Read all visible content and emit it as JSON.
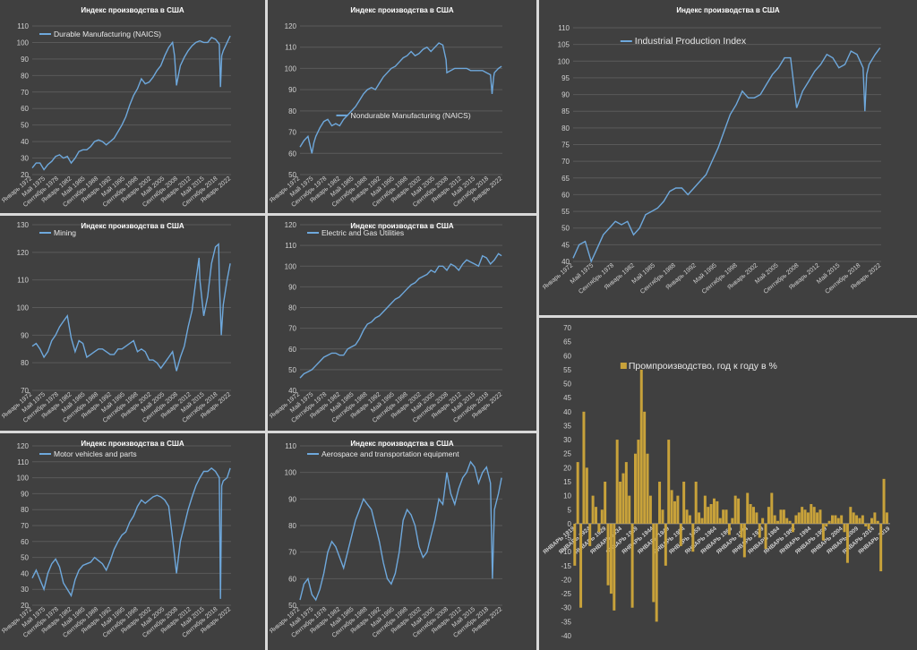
{
  "chart_data": [
    {
      "type": "line",
      "title": "Индекс производства в США",
      "legend": "Durable Manufacturing (NAICS)",
      "legend_position": "top-left",
      "color": "#6ea8dc",
      "ylim": [
        20,
        110
      ],
      "yticks": [
        20,
        30,
        40,
        50,
        60,
        70,
        80,
        90,
        100,
        110
      ],
      "xlim": [
        1972,
        2023
      ],
      "xticks": [
        "Январь 1972",
        "Май 1975",
        "Сентябрь 1978",
        "Январь 1982",
        "Май 1985",
        "Сентябрь 1988",
        "Январь 1992",
        "Май 1995",
        "Сентябрь 1998",
        "Январь 2002",
        "Май 2005",
        "Сентябрь 2008",
        "Январь 2012",
        "Май 2015",
        "Сентябрь 2018",
        "Январь 2022"
      ],
      "x": [
        1972,
        1973,
        1974,
        1975,
        1976,
        1977,
        1978,
        1979,
        1980,
        1981,
        1982,
        1983,
        1984,
        1985,
        1986,
        1987,
        1988,
        1989,
        1990,
        1991,
        1992,
        1993,
        1994,
        1995,
        1996,
        1997,
        1998,
        1999,
        2000,
        2001,
        2002,
        2003,
        2004,
        2005,
        2006,
        2007,
        2008,
        2008.5,
        2009,
        2009.5,
        2010,
        2011,
        2012,
        2013,
        2014,
        2015,
        2016,
        2017,
        2018,
        2019,
        2020,
        2020.3,
        2020.6,
        2021,
        2022,
        2022.8
      ],
      "y": [
        24,
        27,
        27,
        23,
        26,
        28,
        31,
        32,
        30,
        31,
        27,
        30,
        34,
        35,
        35,
        37,
        40,
        41,
        40,
        38,
        40,
        42,
        46,
        50,
        55,
        62,
        68,
        72,
        78,
        75,
        76,
        79,
        83,
        86,
        92,
        97,
        100,
        92,
        74,
        80,
        86,
        91,
        95,
        98,
        100,
        101,
        100,
        100,
        103,
        102,
        99,
        73,
        92,
        95,
        100,
        104
      ]
    },
    {
      "type": "line",
      "title": "Индекс производства в США",
      "legend": "Nondurable Manufacturing (NAICS)",
      "legend_position": "center",
      "color": "#6ea8dc",
      "ylim": [
        50,
        120
      ],
      "yticks": [
        50,
        60,
        70,
        80,
        90,
        100,
        110,
        120
      ],
      "xlim": [
        1972,
        2023
      ],
      "xticks": [
        "Январь 1972",
        "Май 1975",
        "Сентябрь 1978",
        "Январь 1982",
        "Май 1985",
        "Сентябрь 1988",
        "Январь 1992",
        "Май 1995",
        "Сентябрь 1998",
        "Январь 2002",
        "Май 2005",
        "Сентябрь 2008",
        "Январь 2012",
        "Май 2015",
        "Сентябрь 2018",
        "Январь 2022"
      ],
      "x": [
        1972,
        1973,
        1974,
        1975,
        1975.5,
        1976,
        1977,
        1978,
        1979,
        1980,
        1981,
        1982,
        1983,
        1984,
        1985,
        1986,
        1987,
        1988,
        1989,
        1990,
        1991,
        1992,
        1993,
        1994,
        1995,
        1996,
        1997,
        1998,
        1999,
        2000,
        2001,
        2002,
        2003,
        2004,
        2005,
        2006,
        2007,
        2008,
        2008.8,
        2009,
        2010,
        2011,
        2012,
        2013,
        2014,
        2015,
        2016,
        2017,
        2018,
        2019,
        2020,
        2020.4,
        2020.8,
        2021,
        2022,
        2022.8
      ],
      "y": [
        63,
        66,
        68,
        60,
        65,
        68,
        72,
        75,
        76,
        73,
        74,
        73,
        76,
        78,
        80,
        82,
        85,
        88,
        90,
        91,
        90,
        93,
        96,
        98,
        100,
        101,
        103,
        105,
        106,
        108,
        106,
        107,
        109,
        110,
        108,
        110,
        112,
        111,
        104,
        98,
        99,
        100,
        100,
        100,
        100,
        99,
        99,
        99,
        99,
        98,
        97,
        88,
        96,
        98,
        100,
        101
      ]
    },
    {
      "type": "line",
      "title": "Индекс производства в США",
      "legend": "Industrial Production Index",
      "legend_position": "top-center",
      "color": "#6ea8dc",
      "ylim": [
        40,
        110
      ],
      "yticks": [
        40,
        45,
        50,
        55,
        60,
        65,
        70,
        75,
        80,
        85,
        90,
        95,
        100,
        105,
        110
      ],
      "xlim": [
        1972,
        2023
      ],
      "xticks": [
        "Январь 1972",
        "Май 1975",
        "Сентябрь 1978",
        "Январь 1982",
        "Май 1985",
        "Сентябрь 1988",
        "Январь 1992",
        "Май 1995",
        "Сентябрь 1998",
        "Январь 2002",
        "Май 2005",
        "Сентябрь 2008",
        "Январь 2012",
        "Май 2015",
        "Сентябрь 2018",
        "Январь 2022"
      ],
      "x": [
        1972,
        1973,
        1974,
        1975,
        1976,
        1977,
        1978,
        1979,
        1980,
        1981,
        1982,
        1983,
        1984,
        1985,
        1986,
        1987,
        1988,
        1989,
        1990,
        1991,
        1992,
        1993,
        1994,
        1995,
        1996,
        1997,
        1998,
        1999,
        2000,
        2001,
        2002,
        2003,
        2004,
        2005,
        2006,
        2007,
        2008,
        2009,
        2010,
        2011,
        2012,
        2013,
        2014,
        2015,
        2016,
        2017,
        2018,
        2019,
        2020,
        2020.3,
        2020.6,
        2021,
        2022,
        2022.8
      ],
      "y": [
        41,
        45,
        46,
        40,
        44,
        48,
        50,
        52,
        51,
        52,
        48,
        50,
        54,
        55,
        56,
        58,
        61,
        62,
        62,
        60,
        62,
        64,
        66,
        70,
        74,
        79,
        84,
        87,
        91,
        89,
        89,
        90,
        93,
        96,
        98,
        101,
        101,
        86,
        91,
        94,
        97,
        99,
        102,
        101,
        98,
        99,
        103,
        102,
        98,
        85,
        96,
        99,
        102,
        104
      ]
    },
    {
      "type": "line",
      "title": "Индекс производства в США",
      "legend": "Mining",
      "legend_position": "top-left",
      "color": "#6ea8dc",
      "ylim": [
        70,
        130
      ],
      "yticks": [
        70,
        80,
        90,
        100,
        110,
        120,
        130
      ],
      "xlim": [
        1972,
        2023
      ],
      "xticks": [
        "Январь 1972",
        "Май 1975",
        "Сентябрь 1978",
        "Январь 1982",
        "Май 1985",
        "Сентябрь 1988",
        "Январь 1992",
        "Май 1995",
        "Сентябрь 1998",
        "Январь 2002",
        "Май 2005",
        "Сентябрь 2008",
        "Январь 2012",
        "Май 2015",
        "Сентябрь 2018",
        "Январь 2022"
      ],
      "x": [
        1972,
        1973,
        1974,
        1975,
        1976,
        1977,
        1978,
        1979,
        1980,
        1981,
        1982,
        1983,
        1984,
        1985,
        1986,
        1987,
        1988,
        1989,
        1990,
        1991,
        1992,
        1993,
        1994,
        1995,
        1996,
        1997,
        1998,
        1999,
        2000,
        2001,
        2002,
        2003,
        2004,
        2005,
        2006,
        2007,
        2008,
        2009,
        2010,
        2011,
        2012,
        2013,
        2014,
        2014.8,
        2015,
        2016,
        2017,
        2018,
        2019,
        2019.8,
        2020,
        2020.5,
        2021,
        2022,
        2022.8
      ],
      "y": [
        86,
        87,
        85,
        82,
        84,
        88,
        90,
        93,
        95,
        97,
        89,
        84,
        88,
        87,
        82,
        83,
        84,
        85,
        85,
        84,
        83,
        83,
        85,
        85,
        86,
        87,
        88,
        84,
        85,
        84,
        81,
        81,
        80,
        78,
        80,
        82,
        84,
        77,
        82,
        86,
        93,
        99,
        110,
        118,
        110,
        97,
        104,
        116,
        122,
        123,
        110,
        90,
        101,
        110,
        116
      ]
    },
    {
      "type": "line",
      "title": "Индекс производства в США",
      "legend": "Electric and Gas Utilities",
      "legend_position": "top-left",
      "color": "#6ea8dc",
      "ylim": [
        40,
        120
      ],
      "yticks": [
        40,
        50,
        60,
        70,
        80,
        90,
        100,
        110,
        120
      ],
      "xlim": [
        1972,
        2023
      ],
      "xticks": [
        "Январь 1972",
        "Май 1975",
        "Сентябрь 1978",
        "Январь 1982",
        "Май 1985",
        "Сентябрь 1988",
        "Январь 1992",
        "Май 1995",
        "Сентябрь 1998",
        "Январь 2002",
        "Май 2005",
        "Сентябрь 2008",
        "Январь 2012",
        "Май 2015",
        "Сентябрь 2018",
        "Январь 2022"
      ],
      "x": [
        1972,
        1973,
        1974,
        1975,
        1976,
        1977,
        1978,
        1979,
        1980,
        1981,
        1982,
        1983,
        1984,
        1985,
        1986,
        1987,
        1988,
        1989,
        1990,
        1991,
        1992,
        1993,
        1994,
        1995,
        1996,
        1997,
        1998,
        1999,
        2000,
        2001,
        2002,
        2003,
        2004,
        2005,
        2006,
        2007,
        2008,
        2009,
        2010,
        2011,
        2012,
        2013,
        2014,
        2015,
        2016,
        2017,
        2018,
        2019,
        2020,
        2021,
        2022,
        2022.8
      ],
      "y": [
        46,
        48,
        49,
        50,
        52,
        54,
        56,
        57,
        58,
        58,
        57,
        57,
        60,
        61,
        62,
        65,
        69,
        72,
        73,
        75,
        76,
        78,
        80,
        82,
        84,
        85,
        87,
        89,
        91,
        92,
        94,
        95,
        96,
        98,
        97,
        100,
        100,
        98,
        101,
        100,
        98,
        101,
        103,
        102,
        101,
        100,
        105,
        104,
        101,
        103,
        106,
        105
      ]
    },
    {
      "type": "line",
      "title": "Индекс производства в США",
      "legend": "Motor vehicles and parts",
      "legend_position": "top-left",
      "color": "#6ea8dc",
      "ylim": [
        20,
        120
      ],
      "yticks": [
        20,
        30,
        40,
        50,
        60,
        70,
        80,
        90,
        100,
        110,
        120
      ],
      "xlim": [
        1972,
        2023
      ],
      "xticks": [
        "Январь 1972",
        "Май 1975",
        "Сентябрь 1978",
        "Январь 1982",
        "Май 1985",
        "Сентябрь 1988",
        "Январь 1992",
        "Май 1995",
        "Сентябрь 1998",
        "Январь 2002",
        "Май 2005",
        "Сентябрь 2008",
        "Январь 2012",
        "Май 2015",
        "Сентябрь 2018",
        "Январь 2022"
      ],
      "x": [
        1972,
        1973,
        1974,
        1975,
        1976,
        1977,
        1978,
        1979,
        1980,
        1981,
        1982,
        1983,
        1984,
        1985,
        1986,
        1987,
        1988,
        1989,
        1990,
        1991,
        1992,
        1993,
        1994,
        1995,
        1996,
        1997,
        1998,
        1999,
        2000,
        2001,
        2002,
        2003,
        2004,
        2005,
        2006,
        2007,
        2008,
        2009,
        2010,
        2011,
        2012,
        2013,
        2014,
        2015,
        2016,
        2017,
        2018,
        2019,
        2020,
        2020.3,
        2020.6,
        2021,
        2022,
        2022.8
      ],
      "y": [
        37,
        42,
        36,
        30,
        40,
        46,
        49,
        44,
        34,
        30,
        26,
        36,
        42,
        45,
        46,
        47,
        50,
        48,
        46,
        42,
        48,
        55,
        60,
        64,
        66,
        72,
        76,
        82,
        86,
        84,
        86,
        88,
        89,
        88,
        86,
        82,
        62,
        40,
        60,
        70,
        80,
        88,
        95,
        100,
        104,
        104,
        106,
        104,
        100,
        24,
        95,
        98,
        100,
        106
      ]
    },
    {
      "type": "line",
      "title": "Индекс производства в США",
      "legend": "Aerospace and transportation equipment",
      "legend_position": "top-left",
      "color": "#6ea8dc",
      "ylim": [
        50,
        110
      ],
      "yticks": [
        50,
        60,
        70,
        80,
        90,
        100,
        110
      ],
      "xlim": [
        1972,
        2023
      ],
      "xticks": [
        "Январь 1972",
        "Май 1975",
        "Сентябрь 1978",
        "Январь 1982",
        "Май 1985",
        "Сентябрь 1988",
        "Январь 1992",
        "Май 1995",
        "Сентябрь 1998",
        "Январь 2002",
        "Май 2005",
        "Сентябрь 2008",
        "Январь 2012",
        "Май 2015",
        "Сентябрь 2018",
        "Январь 2022"
      ],
      "x": [
        1972,
        1973,
        1974,
        1975,
        1976,
        1977,
        1978,
        1979,
        1980,
        1981,
        1982,
        1983,
        1984,
        1985,
        1986,
        1987,
        1988,
        1989,
        1990,
        1991,
        1992,
        1993,
        1994,
        1995,
        1996,
        1997,
        1998,
        1999,
        2000,
        2001,
        2002,
        2003,
        2004,
        2005,
        2006,
        2007,
        2008,
        2009,
        2010,
        2011,
        2012,
        2013,
        2014,
        2015,
        2016,
        2017,
        2018,
        2019,
        2020,
        2020.5,
        2021,
        2022,
        2022.8
      ],
      "y": [
        52,
        58,
        60,
        54,
        52,
        56,
        62,
        70,
        74,
        72,
        68,
        64,
        70,
        76,
        82,
        86,
        90,
        88,
        86,
        80,
        74,
        66,
        60,
        58,
        62,
        70,
        82,
        86,
        84,
        80,
        72,
        68,
        70,
        76,
        82,
        90,
        88,
        100,
        92,
        88,
        94,
        98,
        100,
        104,
        102,
        96,
        100,
        102,
        96,
        60,
        86,
        92,
        98
      ]
    },
    {
      "type": "bar",
      "title": "",
      "legend": "Промпроизводство, год к году в %",
      "legend_position": "top-center",
      "color": "#c8a23a",
      "ylim": [
        -40,
        70
      ],
      "yticks": [
        -40,
        -35,
        -30,
        -25,
        -20,
        -15,
        -10,
        -5,
        0,
        5,
        10,
        15,
        20,
        25,
        30,
        35,
        40,
        45,
        50,
        55,
        60,
        65,
        70
      ],
      "xlim": [
        1919,
        2023
      ],
      "xticks": [
        "ЯНВАРЬ 1919",
        "ЯНВАРЬ 1924",
        "ЯНВАРЬ 1929",
        "ЯНВАРЬ 1934",
        "ЯНВАРЬ 1939",
        "ЯНВАРЬ 1944",
        "ЯНВАРЬ 1949",
        "ЯНВАРЬ 1954",
        "ЯНВАРЬ 1959",
        "ЯНВАРЬ 1964",
        "ЯНВАРЬ 1969",
        "ЯНВАРЬ 1974",
        "ЯНВАРЬ 1979",
        "ЯНВАРЬ 1984",
        "ЯНВАРЬ 1989",
        "ЯНВАРЬ 1994",
        "ЯНВАРЬ 1999",
        "ЯНВАРЬ 2004",
        "ЯНВАРЬ 2009",
        "ЯНВАРЬ 2014",
        "ЯНВАРЬ 2019"
      ],
      "x": [
        1919,
        1920,
        1921,
        1922,
        1923,
        1924,
        1925,
        1926,
        1927,
        1928,
        1929,
        1930,
        1931,
        1932,
        1933,
        1934,
        1935,
        1936,
        1937,
        1938,
        1939,
        1940,
        1941,
        1942,
        1943,
        1944,
        1945,
        1946,
        1947,
        1948,
        1949,
        1950,
        1951,
        1952,
        1953,
        1954,
        1955,
        1956,
        1957,
        1958,
        1959,
        1960,
        1961,
        1962,
        1963,
        1964,
        1965,
        1966,
        1967,
        1968,
        1969,
        1970,
        1971,
        1972,
        1973,
        1974,
        1975,
        1976,
        1977,
        1978,
        1979,
        1980,
        1981,
        1982,
        1983,
        1984,
        1985,
        1986,
        1987,
        1988,
        1989,
        1990,
        1991,
        1992,
        1993,
        1994,
        1995,
        1996,
        1997,
        1998,
        1999,
        2000,
        2001,
        2002,
        2003,
        2004,
        2005,
        2006,
        2007,
        2008,
        2009,
        2010,
        2011,
        2012,
        2013,
        2014,
        2015,
        2016,
        2017,
        2018,
        2019,
        2020,
        2021,
        2022
      ],
      "y": [
        -15,
        22,
        -30,
        40,
        20,
        -8,
        10,
        6,
        -3,
        5,
        15,
        -22,
        -25,
        -31,
        30,
        15,
        18,
        22,
        10,
        -30,
        25,
        30,
        55,
        40,
        25,
        10,
        -28,
        -35,
        15,
        5,
        -15,
        30,
        12,
        8,
        10,
        -8,
        15,
        5,
        3,
        -10,
        15,
        4,
        2,
        10,
        6,
        7,
        9,
        8,
        2,
        5,
        5,
        -4,
        2,
        10,
        9,
        -5,
        -12,
        11,
        7,
        6,
        4,
        -5,
        2,
        -9,
        6,
        11,
        3,
        1,
        5,
        5,
        2,
        1,
        -3,
        3,
        4,
        6,
        5,
        4,
        7,
        6,
        4,
        5,
        -6,
        -1,
        1,
        3,
        3,
        2,
        3,
        -3,
        -14,
        6,
        4,
        3,
        2,
        3,
        -1,
        -2,
        2,
        4,
        1,
        -17,
        16,
        4
      ]
    }
  ]
}
